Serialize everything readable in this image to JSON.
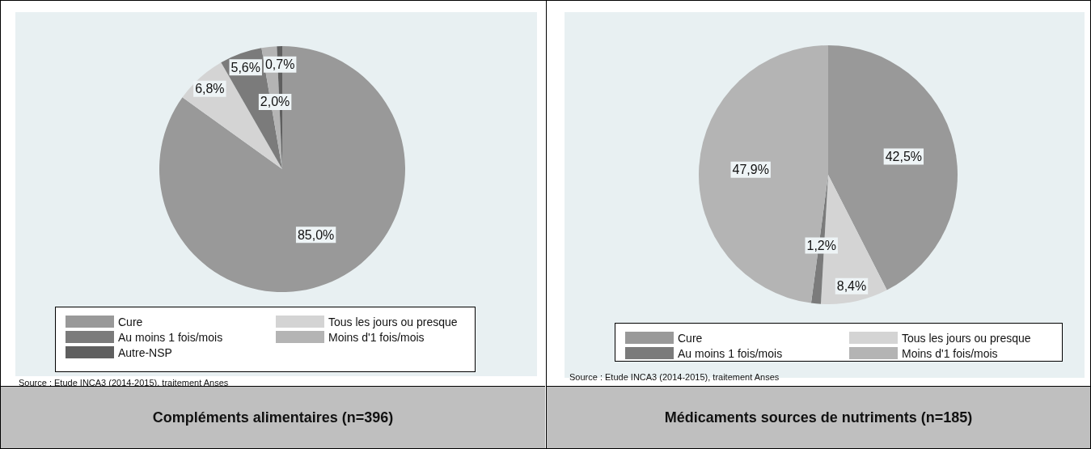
{
  "chart_data": [
    {
      "type": "pie",
      "title": "Compléments alimentaires (n=396)",
      "categories": [
        "Cure",
        "Tous les jours ou presque",
        "Au moins 1 fois/mois",
        "Moins d'1 fois/mois",
        "Autre-NSP"
      ],
      "values": [
        85.0,
        6.8,
        5.6,
        2.0,
        0.7
      ],
      "colors": [
        "#999999",
        "#d4d4d4",
        "#7b7b7b",
        "#b4b4b4",
        "#5f5f5f"
      ],
      "value_labels": [
        "85,0%",
        "6,8%",
        "5,6%",
        "2,0%",
        "0,7%"
      ],
      "legend": "bottom",
      "annotations": [
        "Source : Etude INCA3 (2014-2015), traitement Anses"
      ]
    },
    {
      "type": "pie",
      "title": "Médicaments sources de nutriments (n=185)",
      "categories": [
        "Cure",
        "Tous les jours ou presque",
        "Au moins 1 fois/mois",
        "Moins d'1 fois/mois"
      ],
      "values": [
        42.5,
        8.4,
        1.2,
        47.9
      ],
      "colors": [
        "#999999",
        "#d4d4d4",
        "#7b7b7b",
        "#b4b4b4"
      ],
      "value_labels": [
        "42,5%",
        "8,4%",
        "1,2%",
        "47,9%"
      ],
      "legend": "bottom",
      "annotations": [
        "Source : Etude INCA3 (2014-2015), traitement Anses"
      ]
    }
  ]
}
